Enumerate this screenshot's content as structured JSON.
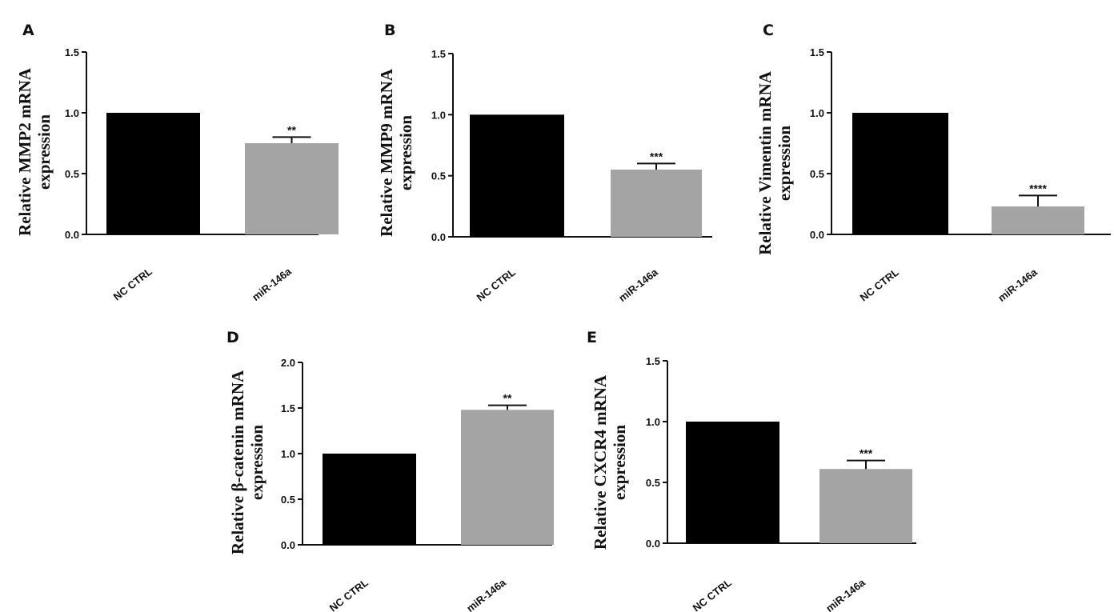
{
  "chart_data": [
    {
      "panel": "A",
      "type": "bar",
      "categories": [
        "NC CTRL",
        "miR-146a"
      ],
      "values": [
        1.0,
        0.75
      ],
      "errors": [
        0,
        0.05
      ],
      "significance": [
        "",
        "**"
      ],
      "ylabel": [
        "Relative MMP2 mRNA",
        "expression"
      ],
      "ylim": [
        0,
        1.5
      ],
      "yticks": [
        "0.0",
        "0.5",
        "1.0",
        "1.5"
      ],
      "colors": [
        "#000000",
        "#a4a4a4"
      ]
    },
    {
      "panel": "B",
      "type": "bar",
      "categories": [
        "NC CTRL",
        "miR-146a"
      ],
      "values": [
        1.0,
        0.55
      ],
      "errors": [
        0,
        0.05
      ],
      "significance": [
        "",
        "***"
      ],
      "ylabel": [
        "Relative MMP9 mRNA",
        "expression"
      ],
      "ylim": [
        0,
        1.5
      ],
      "yticks": [
        "0.0",
        "0.5",
        "1.0",
        "1.5"
      ],
      "colors": [
        "#000000",
        "#a4a4a4"
      ]
    },
    {
      "panel": "C",
      "type": "bar",
      "categories": [
        "NC CTRL",
        "miR-146a"
      ],
      "values": [
        1.0,
        0.23
      ],
      "errors": [
        0,
        0.09
      ],
      "significance": [
        "",
        "****"
      ],
      "ylabel": [
        "Relative Vimentin mRNA",
        "expression"
      ],
      "ylim": [
        0,
        1.5
      ],
      "yticks": [
        "0.0",
        "0.5",
        "1.0",
        "1.5"
      ],
      "colors": [
        "#000000",
        "#a4a4a4"
      ]
    },
    {
      "panel": "D",
      "type": "bar",
      "categories": [
        "NC CTRL",
        "miR-146a"
      ],
      "values": [
        1.0,
        1.48
      ],
      "errors": [
        0,
        0.05
      ],
      "significance": [
        "",
        "**"
      ],
      "ylabel": [
        "Relative β-catenin mRNA",
        "expression"
      ],
      "ylim": [
        0,
        2.0
      ],
      "yticks": [
        "0.0",
        "0.5",
        "1.0",
        "1.5",
        "2.0"
      ],
      "colors": [
        "#000000",
        "#a4a4a4"
      ]
    },
    {
      "panel": "E",
      "type": "bar",
      "categories": [
        "NC CTRL",
        "miR-146a"
      ],
      "values": [
        1.0,
        0.61
      ],
      "errors": [
        0,
        0.07
      ],
      "significance": [
        "",
        "***"
      ],
      "ylabel": [
        "Relative CXCR4 mRNA",
        "expression"
      ],
      "ylim": [
        0,
        1.5
      ],
      "yticks": [
        "0.0",
        "0.5",
        "1.0",
        "1.5"
      ],
      "colors": [
        "#000000",
        "#a4a4a4"
      ]
    }
  ]
}
